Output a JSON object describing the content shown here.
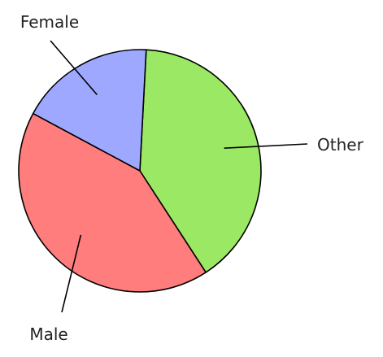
{
  "chart_data": {
    "type": "pie",
    "title": "",
    "slices": [
      {
        "label": "Other",
        "value": 40,
        "color": "#9be864"
      },
      {
        "label": "Male",
        "value": 42,
        "color": "#ff7d7d"
      },
      {
        "label": "Female",
        "value": 18,
        "color": "#9ea8ff"
      }
    ],
    "legend": "none",
    "labels_with_leader_lines": true
  }
}
